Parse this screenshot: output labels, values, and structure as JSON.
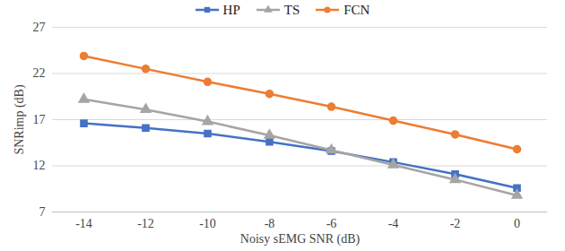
{
  "chart_data": {
    "type": "line",
    "x_label": "Noisy sEMG SNR (dB)",
    "y_label": "SNRimp (dB)",
    "categories": [
      "-14",
      "-12",
      "-10",
      "-8",
      "-6",
      "-4",
      "-2",
      "0"
    ],
    "series": [
      {
        "name": "HP",
        "color": "#4472c4",
        "marker": "square",
        "values": [
          16.6,
          16.1,
          15.5,
          14.6,
          13.6,
          12.4,
          11.1,
          9.6
        ]
      },
      {
        "name": "TS",
        "color": "#a5a5a5",
        "marker": "triangle",
        "values": [
          19.2,
          18.1,
          16.8,
          15.3,
          13.7,
          12.1,
          10.5,
          8.8
        ]
      },
      {
        "name": "FCN",
        "color": "#ed7d31",
        "marker": "circle",
        "values": [
          23.9,
          22.5,
          21.1,
          19.8,
          18.4,
          16.9,
          15.4,
          13.8
        ]
      }
    ],
    "ylim": [
      7,
      27
    ],
    "yticks": [
      7,
      12,
      17,
      22,
      27
    ],
    "grid": true,
    "legend": "top"
  }
}
